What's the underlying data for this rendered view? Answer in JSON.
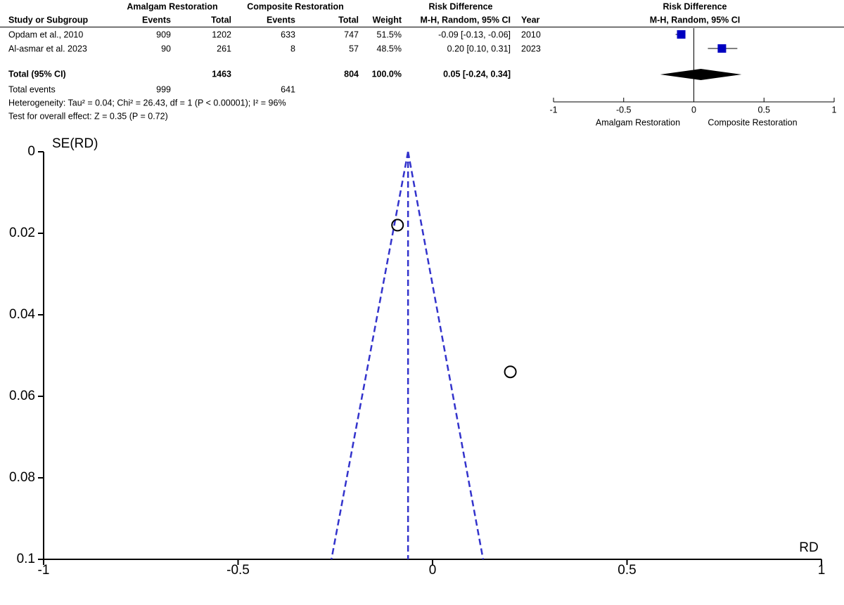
{
  "chart_data": [
    {
      "type": "forest",
      "header_groups": [
        "Amalgam Restoration",
        "Composite Restoration",
        "Risk Difference",
        "Risk Difference"
      ],
      "columns": [
        "Study or Subgroup",
        "Events",
        "Total",
        "Events",
        "Total",
        "Weight",
        "M-H, Random, 95% CI",
        "Year",
        "M-H, Random, 95% CI"
      ],
      "rows": [
        {
          "study": "Opdam et al., 2010",
          "amalgam_events": "909",
          "amalgam_total": "1202",
          "composite_events": "633",
          "composite_total": "747",
          "weight": "51.5%",
          "ci": "-0.09 [-0.13, -0.06]",
          "year": "2010"
        },
        {
          "study": "Al-asmar et al. 2023",
          "amalgam_events": "90",
          "amalgam_total": "261",
          "composite_events": "8",
          "composite_total": "57",
          "weight": "48.5%",
          "ci": "0.20 [0.10, 0.31]",
          "year": "2023"
        }
      ],
      "total_row": {
        "label": "Total (95% CI)",
        "amalgam_total": "1463",
        "composite_total": "804",
        "weight": "100.0%",
        "ci": "0.05 [-0.24, 0.34]"
      },
      "total_events": {
        "label": "Total events",
        "amalgam_events": "999",
        "composite_events": "641"
      },
      "heterogeneity": "Heterogeneity: Tau² = 0.04; Chi² = 26.43, df = 1 (P < 0.00001); I² = 96%",
      "overall_effect": "Test for overall effect: Z = 0.35 (P = 0.72)",
      "values": [
        -0.09,
        0.2
      ],
      "ci_low": [
        -0.13,
        0.1
      ],
      "ci_high": [
        -0.06,
        0.31
      ],
      "total": {
        "value": 0.05,
        "ci_low": -0.24,
        "ci_high": 0.34
      },
      "color": "#0000c0",
      "xlim": [
        -1,
        1
      ],
      "xticks": [
        -1,
        -0.5,
        0,
        0.5,
        1
      ],
      "x_label_left": "Amalgam Restoration",
      "x_label_right": "Composite Restoration"
    },
    {
      "type": "scatter",
      "x": [
        -0.09,
        0.2
      ],
      "values": [
        0.018,
        0.054
      ],
      "summary_x": -0.063,
      "funnel_limits": [
        -0.26,
        0.13
      ],
      "line_color": "#3333cc",
      "xlim": [
        -1,
        1
      ],
      "xticks": [
        -1,
        -0.5,
        0,
        0.5,
        1
      ],
      "ylim": [
        0,
        0.1
      ],
      "yticks": [
        0,
        0.02,
        0.04,
        0.06,
        0.08,
        0.1
      ],
      "y_inverted": true,
      "ylabel": "SE(RD)",
      "xlabel": "RD"
    }
  ]
}
